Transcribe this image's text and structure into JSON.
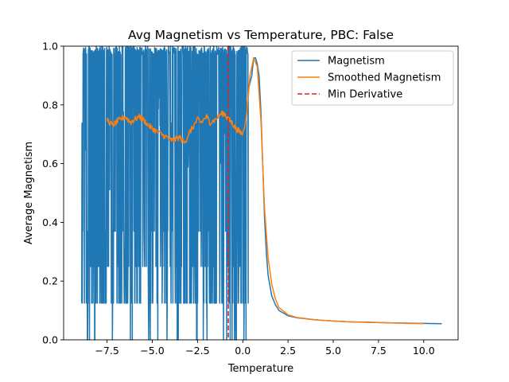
{
  "chart_data": {
    "type": "line",
    "title": "Avg Magnetism vs Temperature, PBC: False",
    "xlabel": "Temperature",
    "ylabel": "Average Magnetism",
    "xlim": [
      -9.9,
      11.9
    ],
    "ylim": [
      0,
      1.0
    ],
    "xticks": [
      -7.5,
      -5.0,
      -2.5,
      0.0,
      2.5,
      5.0,
      7.5,
      10.0
    ],
    "xtick_labels": [
      "−7.5",
      "−5.0",
      "−2.5",
      "0.0",
      "2.5",
      "5.0",
      "7.5",
      "10.0"
    ],
    "yticks": [
      0.0,
      0.2,
      0.4,
      0.6,
      0.8,
      1.0
    ],
    "ytick_labels": [
      "0.0",
      "0.2",
      "0.4",
      "0.6",
      "0.8",
      "1.0"
    ],
    "grid": false,
    "legend_position": "top-right",
    "legend": [
      "Magnetism",
      "Smoothed Magnetism",
      "Min Derivative"
    ],
    "colors": {
      "magnetism": "#1f77b4",
      "smoothed": "#ff7f0e",
      "min_derivative": "#d62728"
    },
    "series": [
      {
        "name": "Magnetism",
        "noisy_region": {
          "x_range": [
            -8.9,
            0.3
          ],
          "upper": 1.0,
          "lower_values_seen": [
            0.0,
            0.125,
            0.25,
            0.37,
            0.5
          ]
        },
        "x": [
          0.3,
          0.5,
          0.6,
          0.7,
          0.8,
          0.9,
          1.0,
          1.1,
          1.2,
          1.3,
          1.4,
          1.6,
          1.8,
          2.0,
          2.5,
          3.0,
          4.0,
          5.0,
          6.0,
          7.0,
          8.0,
          9.0,
          10.0,
          11.0
        ],
        "values": [
          0.85,
          0.9,
          0.96,
          0.96,
          0.94,
          0.9,
          0.78,
          0.6,
          0.42,
          0.3,
          0.22,
          0.15,
          0.12,
          0.1,
          0.082,
          0.075,
          0.068,
          0.064,
          0.061,
          0.06,
          0.058,
          0.057,
          0.056,
          0.055
        ]
      },
      {
        "name": "Smoothed Magnetism",
        "x": [
          -7.5,
          -7.2,
          -7.0,
          -6.8,
          -6.5,
          -6.2,
          -6.0,
          -5.7,
          -5.5,
          -5.2,
          -5.0,
          -4.8,
          -4.5,
          -4.2,
          -4.0,
          -3.8,
          -3.5,
          -3.2,
          -3.0,
          -2.8,
          -2.5,
          -2.3,
          -2.0,
          -1.8,
          -1.5,
          -1.2,
          -1.0,
          -0.8,
          -0.6,
          -0.4,
          -0.2,
          0.0,
          0.2,
          0.4,
          0.6,
          0.8,
          1.0,
          1.2,
          1.4,
          1.6,
          1.8,
          2.0,
          2.5,
          3.0,
          4.0,
          5.0,
          6.0,
          7.0,
          8.0,
          9.0,
          10.0
        ],
        "values": [
          0.75,
          0.73,
          0.74,
          0.75,
          0.76,
          0.74,
          0.75,
          0.76,
          0.75,
          0.73,
          0.72,
          0.71,
          0.7,
          0.69,
          0.68,
          0.68,
          0.69,
          0.67,
          0.7,
          0.72,
          0.75,
          0.74,
          0.76,
          0.74,
          0.75,
          0.77,
          0.77,
          0.75,
          0.74,
          0.72,
          0.71,
          0.7,
          0.76,
          0.9,
          0.96,
          0.93,
          0.75,
          0.45,
          0.28,
          0.19,
          0.14,
          0.11,
          0.085,
          0.076,
          0.068,
          0.064,
          0.061,
          0.059,
          0.058,
          0.056,
          0.055
        ]
      }
    ],
    "vertical_lines": [
      {
        "name": "Min Derivative",
        "x": -0.8
      }
    ]
  }
}
